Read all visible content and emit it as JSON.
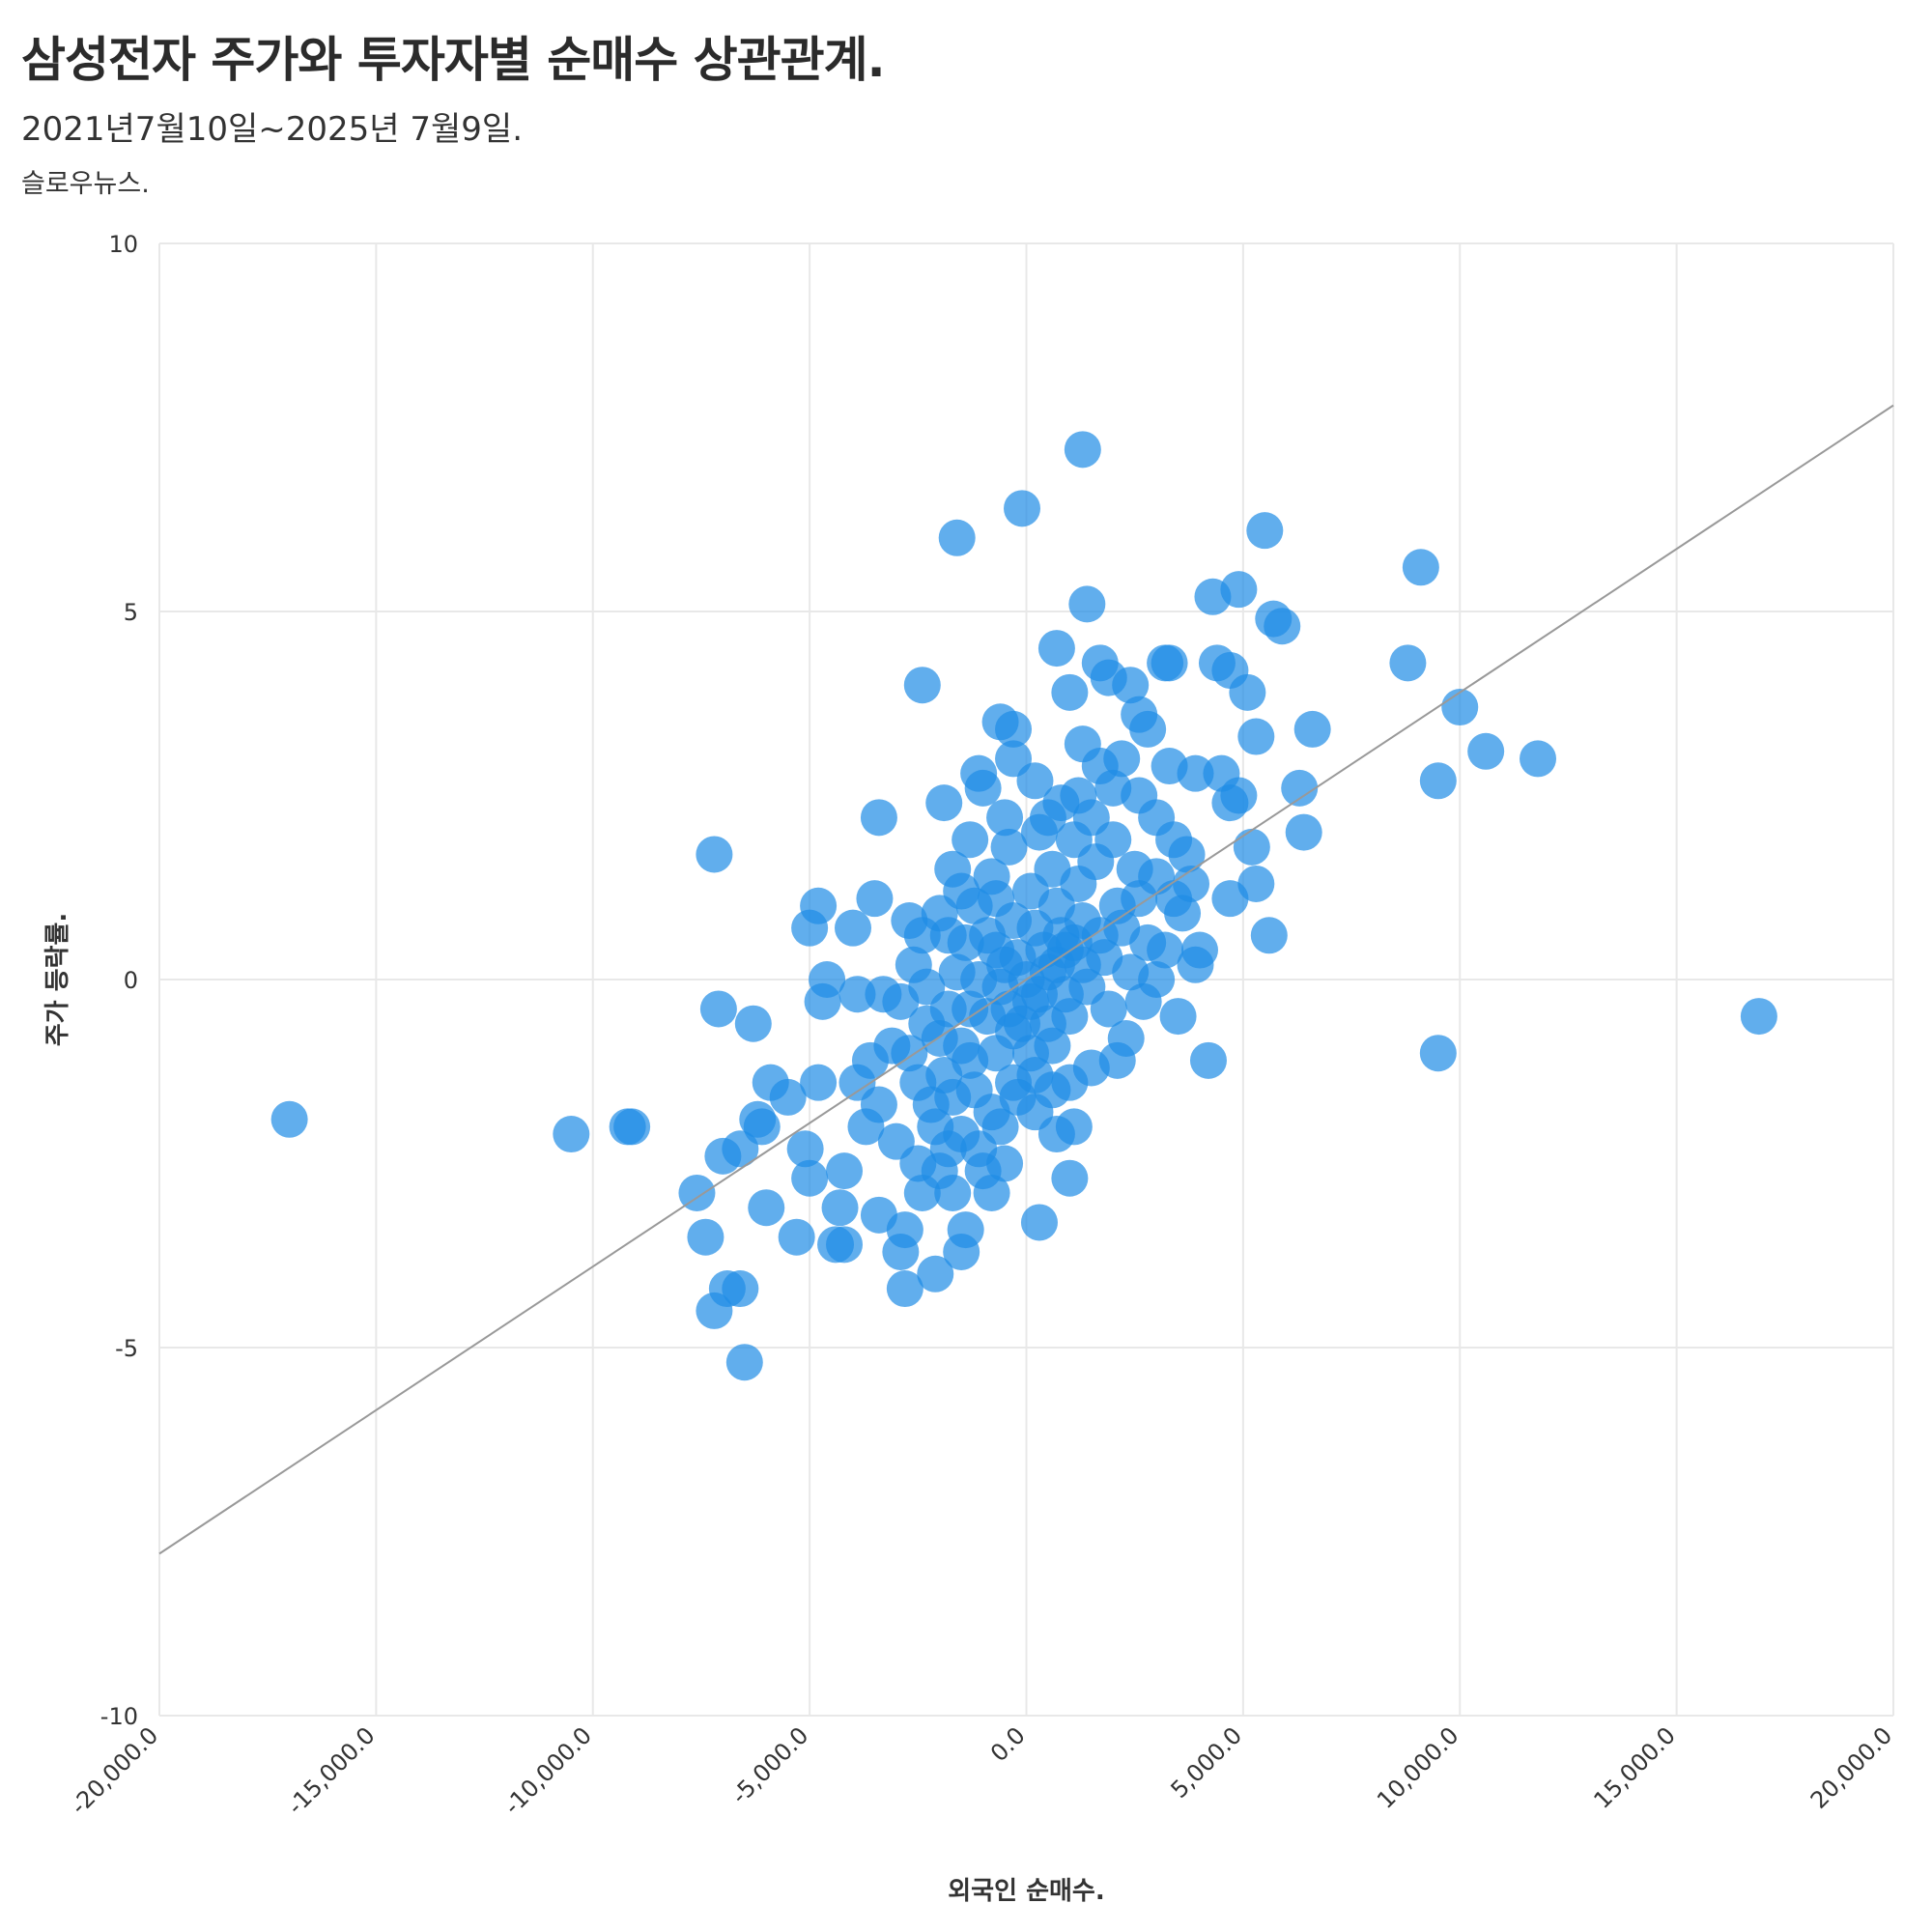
{
  "header": {
    "title": "삼성전자 주가와 투자자별 순매수 상관관계.",
    "subtitle": "2021년7월10일~2025년 7월9일.",
    "source": "슬로우뉴스."
  },
  "colors": {
    "point": "#1e8ce6",
    "trendline": "#999999",
    "grid": "#e8e8e8"
  },
  "chart_data": {
    "type": "scatter",
    "title": "삼성전자 주가와 투자자별 순매수 상관관계.",
    "xlabel": "외국인 순매수.",
    "ylabel": "주가 등락률.",
    "xlim": [
      -20000,
      20000
    ],
    "ylim": [
      -10,
      10
    ],
    "x_ticks": [
      -20000,
      -15000,
      -10000,
      -5000,
      0,
      5000,
      10000,
      15000,
      20000
    ],
    "x_tick_labels": [
      "-20,000.0",
      "-15,000.0",
      "-10,000.0",
      "-5,000.0",
      "0.0",
      "5,000.0",
      "10,000.0",
      "15,000.0",
      "20,000.0"
    ],
    "y_ticks": [
      -10,
      -5,
      0,
      5,
      10
    ],
    "y_tick_labels": [
      "-10",
      "-5",
      "0",
      "5",
      "10"
    ],
    "grid": true,
    "legend": "none",
    "trendline": {
      "x": [
        -20000,
        20000
      ],
      "y": [
        -7.8,
        7.8
      ]
    },
    "series": [
      {
        "points": [
          [
            1300,
            7.2
          ],
          [
            -100,
            6.4
          ],
          [
            -1600,
            6.0
          ],
          [
            5500,
            6.1
          ],
          [
            9100,
            5.6
          ],
          [
            4300,
            5.2
          ],
          [
            4900,
            5.3
          ],
          [
            5700,
            4.9
          ],
          [
            5900,
            4.8
          ],
          [
            1400,
            5.1
          ],
          [
            700,
            4.5
          ],
          [
            1700,
            4.3
          ],
          [
            1900,
            4.1
          ],
          [
            2400,
            4.0
          ],
          [
            3200,
            4.3
          ],
          [
            3300,
            4.3
          ],
          [
            4400,
            4.3
          ],
          [
            4700,
            4.2
          ],
          [
            5100,
            3.9
          ],
          [
            8800,
            4.3
          ],
          [
            10000,
            3.7
          ],
          [
            10600,
            3.1
          ],
          [
            11800,
            3.0
          ],
          [
            9500,
            2.7
          ],
          [
            6600,
            3.4
          ],
          [
            5300,
            3.3
          ],
          [
            6300,
            2.6
          ],
          [
            6400,
            2.0
          ],
          [
            5200,
            1.8
          ],
          [
            5300,
            1.3
          ],
          [
            4700,
            1.1
          ],
          [
            5600,
            0.6
          ],
          [
            -2400,
            4.0
          ],
          [
            -600,
            3.5
          ],
          [
            -300,
            3.4
          ],
          [
            1000,
            3.9
          ],
          [
            -3400,
            2.2
          ],
          [
            -1900,
            2.4
          ],
          [
            -7200,
            1.7
          ],
          [
            -3500,
            1.1
          ],
          [
            -4800,
            1.0
          ],
          [
            -5000,
            0.7
          ],
          [
            -4000,
            0.7
          ],
          [
            -2700,
            0.8
          ],
          [
            -2400,
            0.6
          ],
          [
            -4600,
            0.0
          ],
          [
            -4700,
            -0.3
          ],
          [
            -3900,
            -0.2
          ],
          [
            -3300,
            -0.2
          ],
          [
            -7100,
            -0.4
          ],
          [
            -6300,
            -0.6
          ],
          [
            -5900,
            -1.4
          ],
          [
            -5500,
            -1.6
          ],
          [
            -4800,
            -1.4
          ],
          [
            -6200,
            -1.9
          ],
          [
            -6100,
            -2.0
          ],
          [
            -6600,
            -2.3
          ],
          [
            -7000,
            -2.4
          ],
          [
            -5100,
            -2.3
          ],
          [
            -5000,
            -2.7
          ],
          [
            -4200,
            -2.6
          ],
          [
            -4300,
            -3.1
          ],
          [
            -5300,
            -3.5
          ],
          [
            -4400,
            -3.6
          ],
          [
            -4200,
            -3.6
          ],
          [
            -6000,
            -3.1
          ],
          [
            -7600,
            -2.9
          ],
          [
            -7400,
            -3.5
          ],
          [
            -6900,
            -4.2
          ],
          [
            -6600,
            -4.2
          ],
          [
            -7200,
            -4.5
          ],
          [
            -6500,
            -5.2
          ],
          [
            -10500,
            -2.1
          ],
          [
            -9200,
            -2.0
          ],
          [
            -9100,
            -2.0
          ],
          [
            -17000,
            -1.9
          ],
          [
            -2900,
            -3.7
          ],
          [
            -2800,
            -4.2
          ],
          [
            -2100,
            -4.0
          ],
          [
            -1500,
            -3.7
          ],
          [
            -1400,
            -3.4
          ],
          [
            -3400,
            -3.2
          ],
          [
            -2800,
            -3.4
          ],
          [
            1000,
            -2.7
          ],
          [
            300,
            -3.3
          ],
          [
            1100,
            -2.0
          ],
          [
            2100,
            -1.1
          ],
          [
            3500,
            -0.5
          ],
          [
            4200,
            -1.1
          ],
          [
            9500,
            -1.0
          ],
          [
            16900,
            -0.5
          ],
          [
            3000,
            0.0
          ],
          [
            3900,
            0.2
          ],
          [
            4000,
            0.4
          ],
          [
            3700,
            1.7
          ],
          [
            3300,
            2.9
          ],
          [
            3900,
            2.8
          ],
          [
            4500,
            2.8
          ],
          [
            4700,
            2.4
          ],
          [
            4900,
            2.5
          ],
          [
            2600,
            3.6
          ],
          [
            2800,
            3.4
          ],
          [
            2200,
            3.0
          ],
          [
            1700,
            2.9
          ],
          [
            1300,
            3.2
          ],
          [
            -1100,
            2.8
          ],
          [
            -1000,
            2.6
          ],
          [
            -300,
            3.0
          ],
          [
            200,
            2.7
          ],
          [
            -1700,
            1.5
          ],
          [
            -1500,
            1.2
          ],
          [
            -2000,
            0.9
          ],
          [
            -1800,
            0.6
          ],
          [
            -2600,
            0.2
          ],
          [
            -2300,
            -0.1
          ],
          [
            -2900,
            -0.3
          ],
          [
            -3100,
            -0.9
          ],
          [
            -3600,
            -1.1
          ],
          [
            -3900,
            -1.4
          ],
          [
            -3400,
            -1.7
          ],
          [
            -3700,
            -2.0
          ],
          [
            -3000,
            -2.2
          ],
          [
            -2500,
            -2.5
          ],
          [
            -2000,
            -2.6
          ],
          [
            -1700,
            -2.9
          ],
          [
            -2400,
            -2.9
          ],
          [
            -800,
            -2.9
          ],
          [
            -500,
            -2.5
          ],
          [
            700,
            -2.1
          ],
          [
            1500,
            -1.2
          ],
          [
            2300,
            -0.8
          ],
          [
            2700,
            -0.3
          ],
          [
            3200,
            0.4
          ],
          [
            3600,
            0.9
          ],
          [
            2500,
            1.5
          ],
          [
            2000,
            1.9
          ],
          [
            1500,
            2.2
          ],
          [
            800,
            2.4
          ],
          [
            300,
            2.0
          ],
          [
            -400,
            1.8
          ],
          [
            -800,
            1.4
          ],
          [
            -1200,
            1.0
          ],
          [
            -1400,
            0.5
          ],
          [
            -1600,
            0.1
          ],
          [
            -1800,
            -0.4
          ],
          [
            -2000,
            -0.8
          ],
          [
            -1900,
            -1.3
          ],
          [
            -2200,
            -1.7
          ],
          [
            -1500,
            -2.1
          ],
          [
            -1100,
            -2.3
          ],
          [
            -600,
            -2.0
          ],
          [
            -200,
            -1.6
          ],
          [
            200,
            -1.3
          ],
          [
            600,
            -0.9
          ],
          [
            1000,
            -0.5
          ],
          [
            1400,
            -0.1
          ],
          [
            1800,
            0.3
          ],
          [
            2200,
            0.7
          ],
          [
            2600,
            1.1
          ],
          [
            3000,
            1.4
          ],
          [
            1600,
            1.6
          ],
          [
            1100,
            1.9
          ],
          [
            600,
            1.5
          ],
          [
            100,
            1.2
          ],
          [
            -300,
            0.8
          ],
          [
            -700,
            0.4
          ],
          [
            -1100,
            0.0
          ],
          [
            -1300,
            -0.4
          ],
          [
            -1500,
            -0.9
          ],
          [
            -1200,
            -1.5
          ],
          [
            -800,
            -1.8
          ],
          [
            -300,
            -1.4
          ],
          [
            100,
            -1.0
          ],
          [
            500,
            -0.6
          ],
          [
            900,
            -0.2
          ],
          [
            1300,
            0.2
          ],
          [
            1700,
            0.6
          ],
          [
            2100,
            1.0
          ],
          [
            1200,
            1.3
          ],
          [
            700,
            1.0
          ],
          [
            200,
            0.7
          ],
          [
            -200,
            0.3
          ],
          [
            -600,
            -0.1
          ],
          [
            -900,
            -0.5
          ],
          [
            -700,
            -1.0
          ],
          [
            -300,
            -0.7
          ],
          [
            100,
            -0.3
          ],
          [
            500,
            0.1
          ],
          [
            900,
            0.4
          ],
          [
            1300,
            0.8
          ],
          [
            400,
            0.4
          ],
          [
            0,
            0.0
          ],
          [
            -400,
            -0.4
          ],
          [
            800,
            0.6
          ],
          [
            -100,
            -0.6
          ],
          [
            300,
            -0.2
          ],
          [
            700,
            0.2
          ],
          [
            1100,
            0.5
          ],
          [
            -500,
            0.2
          ],
          [
            -900,
            0.6
          ],
          [
            -1300,
            -1.1
          ],
          [
            -1700,
            -1.6
          ],
          [
            -2100,
            -2.0
          ],
          [
            -2500,
            -1.4
          ],
          [
            -2700,
            -1.0
          ],
          [
            -2300,
            -0.6
          ],
          [
            1900,
            -0.4
          ],
          [
            2400,
            0.1
          ],
          [
            2800,
            0.5
          ],
          [
            3400,
            1.1
          ],
          [
            3800,
            1.3
          ],
          [
            3400,
            1.9
          ],
          [
            3000,
            2.2
          ],
          [
            2600,
            2.5
          ],
          [
            2000,
            2.6
          ],
          [
            1200,
            2.5
          ],
          [
            500,
            2.2
          ],
          [
            -500,
            2.2
          ],
          [
            -1300,
            1.9
          ],
          [
            -700,
            1.1
          ],
          [
            200,
            -1.8
          ],
          [
            600,
            -1.5
          ],
          [
            1000,
            -1.4
          ],
          [
            -1000,
            -2.6
          ],
          [
            -1800,
            -2.3
          ]
        ]
      }
    ]
  }
}
